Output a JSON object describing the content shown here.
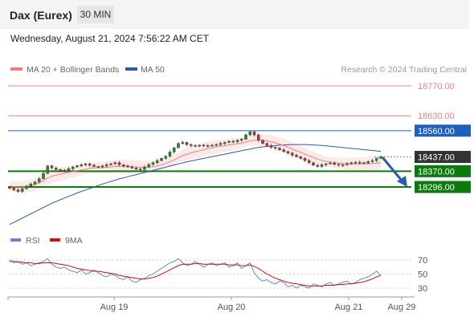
{
  "header": {
    "title": "Dax (Eurex)",
    "timeframe": "30 MIN"
  },
  "date_text": "Wednesday, August 21, 2024 7:56:22 AM CET",
  "watermark": "Research © 2024 Trading Central",
  "colors": {
    "ma20": "#f08080",
    "ma50": "#2a5caa",
    "resistance": "#f08080",
    "blue_level": "#1f5fbf",
    "support": "#0d7a0d",
    "current": "#333333",
    "arrow": "#2a5caa",
    "rsi": "#5b8bd8",
    "rsi_ma": "#d01010",
    "candle_up": "#2a8a2a",
    "candle_down": "#c83030"
  },
  "chart_data": [
    {
      "type": "candlestick",
      "legend": [
        {
          "name": "MA 20 + Bollinger Bands",
          "color": "#f08080"
        },
        {
          "name": "MA 50",
          "color": "#2a5caa"
        }
      ],
      "legend_placement": "top-left",
      "ylim": [
        18100,
        18800
      ],
      "x_ticks": [
        "Aug 19",
        "Aug 20",
        "Aug 21",
        "Aug 29"
      ],
      "levels": [
        {
          "value": 18770.0,
          "label": "18770.00",
          "kind": "resistance"
        },
        {
          "value": 18630.0,
          "label": "18630.00",
          "kind": "resistance"
        },
        {
          "value": 18560.0,
          "label": "18560.00",
          "kind": "pivot"
        },
        {
          "value": 18437.0,
          "label": "18437.00",
          "kind": "current"
        },
        {
          "value": 18370.0,
          "label": "18370.00",
          "kind": "support"
        },
        {
          "value": 18296.0,
          "label": "18296.00",
          "kind": "support"
        }
      ],
      "close": [
        18290,
        18282,
        18275,
        18288,
        18300,
        18310,
        18320,
        18335,
        18360,
        18395,
        18385,
        18378,
        18370,
        18375,
        18382,
        18390,
        18395,
        18400,
        18405,
        18398,
        18392,
        18390,
        18395,
        18400,
        18405,
        18410,
        18400,
        18395,
        18390,
        18385,
        18380,
        18378,
        18390,
        18402,
        18410,
        18420,
        18430,
        18440,
        18460,
        18480,
        18500,
        18505,
        18495,
        18490,
        18488,
        18492,
        18490,
        18488,
        18492,
        18495,
        18500,
        18505,
        18510,
        18508,
        18515,
        18520,
        18540,
        18555,
        18540,
        18515,
        18500,
        18490,
        18482,
        18478,
        18470,
        18462,
        18455,
        18445,
        18438,
        18430,
        18420,
        18410,
        18398,
        18392,
        18400,
        18405,
        18408,
        18402,
        18398,
        18400,
        18405,
        18410,
        18412,
        18410,
        18408,
        18415,
        18420,
        18430,
        18437
      ],
      "ma20": [
        18300,
        18298,
        18296,
        18296,
        18298,
        18302,
        18308,
        18316,
        18326,
        18338,
        18346,
        18352,
        18356,
        18360,
        18364,
        18368,
        18372,
        18376,
        18380,
        18383,
        18385,
        18386,
        18387,
        18388,
        18390,
        18392,
        18393,
        18393,
        18392,
        18391,
        18390,
        18388,
        18388,
        18389,
        18391,
        18395,
        18400,
        18406,
        18414,
        18423,
        18433,
        18443,
        18450,
        18456,
        18461,
        18466,
        18471,
        18476,
        18480,
        18484,
        18487,
        18490,
        18493,
        18496,
        18499,
        18502,
        18507,
        18512,
        18515,
        18516,
        18515,
        18512,
        18508,
        18503,
        18497,
        18490,
        18482,
        18474,
        18466,
        18458,
        18450,
        18442,
        18434,
        18427,
        18421,
        18416,
        18413,
        18410,
        18408,
        18406,
        18405,
        18404,
        18404,
        18404,
        18404,
        18405,
        18406,
        18408,
        18410
      ],
      "ma50": [
        18120,
        18130,
        18140,
        18150,
        18160,
        18170,
        18180,
        18190,
        18200,
        18210,
        18220,
        18228,
        18236,
        18244,
        18252,
        18260,
        18268,
        18275,
        18282,
        18289,
        18296,
        18303,
        18310,
        18316,
        18322,
        18328,
        18334,
        18339,
        18344,
        18349,
        18354,
        18359,
        18364,
        18369,
        18374,
        18379,
        18384,
        18389,
        18394,
        18399,
        18404,
        18409,
        18414,
        18418,
        18422,
        18426,
        18430,
        18434,
        18438,
        18442,
        18446,
        18450,
        18454,
        18458,
        18462,
        18466,
        18470,
        18474,
        18478,
        18481,
        18484,
        18486,
        18488,
        18490,
        18492,
        18493,
        18494,
        18495,
        18495,
        18495,
        18495,
        18494,
        18493,
        18492,
        18491,
        18489,
        18487,
        18485,
        18483,
        18481,
        18479,
        18477,
        18475,
        18473,
        18471,
        18469,
        18467,
        18465,
        18463
      ]
    },
    {
      "type": "line",
      "legend": [
        {
          "name": "RSI",
          "color": "#5b8bd8"
        },
        {
          "name": "9MA",
          "color": "#d01010"
        }
      ],
      "ylim": [
        20,
        80
      ],
      "y_ticks": [
        70,
        50,
        30
      ],
      "rsi": [
        70,
        66,
        68,
        64,
        66,
        62,
        64,
        66,
        68,
        72,
        64,
        60,
        58,
        60,
        56,
        54,
        52,
        56,
        50,
        52,
        56,
        52,
        48,
        46,
        50,
        48,
        44,
        42,
        46,
        40,
        38,
        42,
        44,
        48,
        50,
        54,
        58,
        62,
        66,
        68,
        72,
        66,
        62,
        64,
        68,
        64,
        60,
        64,
        66,
        62,
        64,
        66,
        60,
        62,
        66,
        58,
        62,
        66,
        52,
        44,
        40,
        42,
        38,
        36,
        40,
        38,
        32,
        34,
        30,
        34,
        32,
        30,
        36,
        34,
        32,
        36,
        38,
        34,
        36,
        38,
        40,
        36,
        38,
        42,
        44,
        46,
        50,
        54,
        48
      ],
      "rsi_ma": [
        68,
        68,
        67,
        67,
        66,
        66,
        65,
        65,
        66,
        66,
        66,
        65,
        64,
        63,
        62,
        60,
        58,
        57,
        56,
        55,
        54,
        54,
        53,
        52,
        51,
        50,
        48,
        47,
        46,
        45,
        44,
        43,
        43,
        44,
        45,
        47,
        50,
        53,
        56,
        59,
        62,
        64,
        64,
        64,
        65,
        65,
        64,
        64,
        64,
        64,
        64,
        64,
        63,
        63,
        63,
        62,
        62,
        63,
        61,
        58,
        54,
        50,
        47,
        44,
        42,
        40,
        38,
        37,
        36,
        35,
        34,
        33,
        33,
        33,
        33,
        34,
        34,
        34,
        35,
        35,
        36,
        36,
        37,
        38,
        39,
        41,
        43,
        46,
        48
      ]
    }
  ]
}
